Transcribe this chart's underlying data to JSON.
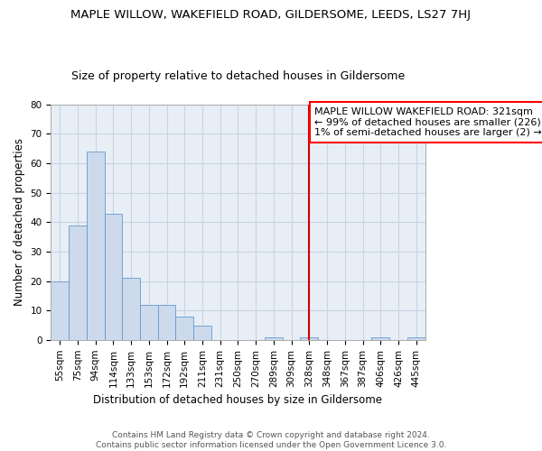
{
  "title": "MAPLE WILLOW, WAKEFIELD ROAD, GILDERSOME, LEEDS, LS27 7HJ",
  "subtitle": "Size of property relative to detached houses in Gildersome",
  "xlabel": "Distribution of detached houses by size in Gildersome",
  "ylabel": "Number of detached properties",
  "bar_color": "#ccdaec",
  "bar_edge_color": "#6699cc",
  "background_color": "#e8eef6",
  "grid_color": "#c8d4e4",
  "fig_background": "#ffffff",
  "categories": [
    "55sqm",
    "75sqm",
    "94sqm",
    "114sqm",
    "133sqm",
    "153sqm",
    "172sqm",
    "192sqm",
    "211sqm",
    "231sqm",
    "250sqm",
    "270sqm",
    "289sqm",
    "309sqm",
    "328sqm",
    "348sqm",
    "367sqm",
    "387sqm",
    "406sqm",
    "426sqm",
    "445sqm"
  ],
  "values": [
    20,
    39,
    64,
    43,
    21,
    12,
    12,
    8,
    5,
    0,
    0,
    0,
    1,
    0,
    1,
    0,
    0,
    0,
    1,
    0,
    1
  ],
  "ylim": [
    0,
    80
  ],
  "yticks": [
    0,
    10,
    20,
    30,
    40,
    50,
    60,
    70,
    80
  ],
  "marker_label": "MAPLE WILLOW WAKEFIELD ROAD: 321sqm",
  "annotation_line1": "← 99% of detached houses are smaller (226)",
  "annotation_line2": "1% of semi-detached houses are larger (2) →",
  "vline_color": "#cc0000",
  "vline_index": 14,
  "footer_line1": "Contains HM Land Registry data © Crown copyright and database right 2024.",
  "footer_line2": "Contains public sector information licensed under the Open Government Licence 3.0.",
  "title_fontsize": 9.5,
  "subtitle_fontsize": 9,
  "axis_label_fontsize": 8.5,
  "tick_fontsize": 7.5,
  "annotation_fontsize": 8
}
